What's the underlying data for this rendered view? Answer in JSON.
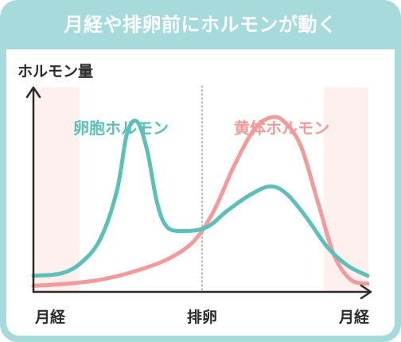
{
  "header": {
    "title": "月経や排卵前にホルモンが動く"
  },
  "chart_data": {
    "type": "line",
    "ylabel": "ホルモン量",
    "x_tick_labels": [
      "月経",
      "排卵",
      "月経"
    ],
    "grid": false,
    "y_tick_labels": false,
    "marker_lines": [
      {
        "label": "排卵",
        "style": "dotted"
      }
    ],
    "shaded_regions": [
      {
        "label": "月経",
        "position": "start"
      },
      {
        "label": "月経",
        "position": "end"
      }
    ],
    "series": [
      {
        "name": "卵胞ホルモン",
        "color": "#5cbfb9",
        "points": [
          [
            0.0,
            0.08
          ],
          [
            0.08,
            0.09
          ],
          [
            0.14,
            0.14
          ],
          [
            0.2,
            0.26
          ],
          [
            0.25,
            0.5
          ],
          [
            0.28,
            0.78
          ],
          [
            0.31,
            0.84
          ],
          [
            0.34,
            0.7
          ],
          [
            0.37,
            0.44
          ],
          [
            0.4,
            0.32
          ],
          [
            0.45,
            0.3
          ],
          [
            0.52,
            0.32
          ],
          [
            0.58,
            0.4
          ],
          [
            0.65,
            0.48
          ],
          [
            0.71,
            0.52
          ],
          [
            0.76,
            0.48
          ],
          [
            0.82,
            0.36
          ],
          [
            0.88,
            0.22
          ],
          [
            0.94,
            0.13
          ],
          [
            1.0,
            0.08
          ]
        ]
      },
      {
        "name": "黄体ホルモン",
        "color": "#f59a9a",
        "points": [
          [
            0.0,
            0.03
          ],
          [
            0.1,
            0.04
          ],
          [
            0.2,
            0.06
          ],
          [
            0.3,
            0.1
          ],
          [
            0.4,
            0.16
          ],
          [
            0.48,
            0.25
          ],
          [
            0.54,
            0.4
          ],
          [
            0.6,
            0.62
          ],
          [
            0.66,
            0.8
          ],
          [
            0.71,
            0.86
          ],
          [
            0.75,
            0.84
          ],
          [
            0.8,
            0.72
          ],
          [
            0.85,
            0.45
          ],
          [
            0.9,
            0.18
          ],
          [
            0.95,
            0.06
          ],
          [
            1.0,
            0.04
          ]
        ]
      }
    ]
  },
  "colors": {
    "frame": "#a7dada",
    "shade": "#fdf0ef",
    "axis": "#2b2b2b",
    "estrogen": "#5cbfb9",
    "progesterone": "#f59a9a"
  }
}
